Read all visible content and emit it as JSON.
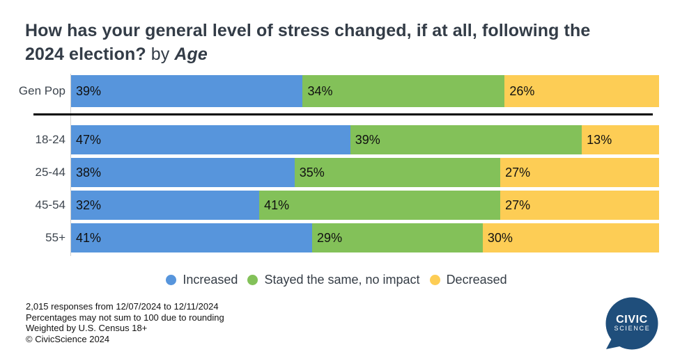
{
  "title": {
    "line1": "How has your general level of stress changed, if at all, following the",
    "line2": "2024 election?",
    "connector": "by",
    "group": "Age"
  },
  "chart_data": {
    "type": "bar",
    "stacked": true,
    "orientation": "horizontal",
    "unit": "%",
    "categories": [
      "Gen Pop",
      "18-24",
      "25-44",
      "45-54",
      "55+"
    ],
    "series": [
      {
        "name": "Increased",
        "values": [
          39,
          47,
          38,
          32,
          41
        ]
      },
      {
        "name": "Stayed the same, no impact",
        "values": [
          34,
          39,
          35,
          41,
          29
        ]
      },
      {
        "name": "Decreased",
        "values": [
          26,
          13,
          27,
          27,
          30
        ]
      }
    ],
    "colors": [
      "#5795dc",
      "#83c159",
      "#fdcd55"
    ],
    "value_label_format": "{v}%",
    "legend_position": "bottom-center",
    "gen_pop_separated": true
  },
  "legend": [
    {
      "label": "Increased",
      "color": "#5795dc"
    },
    {
      "label": "Stayed the same, no impact",
      "color": "#83c159"
    },
    {
      "label": "Decreased",
      "color": "#fdcd55"
    }
  ],
  "footer": {
    "lines": [
      "2,015 responses from 12/07/2024 to 12/11/2024",
      "Percentages may not sum to 100 due to rounding",
      "Weighted by U.S. Census 18+",
      "© CivicScience 2024"
    ]
  },
  "logo": {
    "line1": "CIVIC",
    "line2": "SCIENCE",
    "color": "#1f4e7b"
  }
}
